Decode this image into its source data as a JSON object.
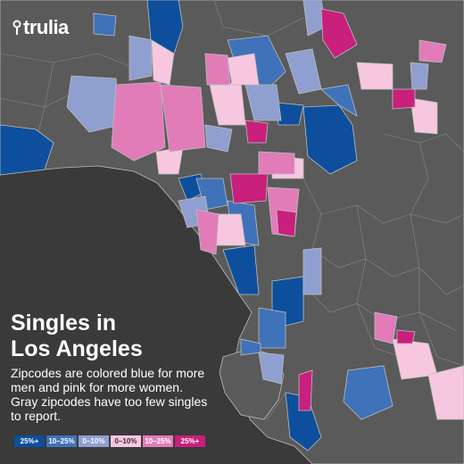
{
  "brand": {
    "name": "trulia"
  },
  "title_lines": [
    "Singles in",
    "Los Angeles"
  ],
  "description_lines": [
    "Zipcodes are colored blue for more",
    "men and pink for more women.",
    "Gray zipcodes have too few singles",
    "to report."
  ],
  "legend": [
    {
      "label": "25%+",
      "color": "#0d4f9c",
      "text_color": "#ffffff",
      "group": "men"
    },
    {
      "label": "10–25%",
      "color": "#3f72b8",
      "text_color": "#ffffff",
      "group": "men"
    },
    {
      "label": "0–10%",
      "color": "#8f9fd0",
      "text_color": "#ffffff",
      "group": "men"
    },
    {
      "label": "0–10%",
      "color": "#f7c7e0",
      "text_color": "#333333",
      "group": "women"
    },
    {
      "label": "10–25%",
      "color": "#e17cb9",
      "text_color": "#ffffff",
      "group": "women"
    },
    {
      "label": "25%+",
      "color": "#c91f7d",
      "text_color": "#ffffff",
      "group": "women"
    }
  ],
  "colors": {
    "ocean": "#3a3a3a",
    "land_gray": "#5a5a5a",
    "border": "#bdbdbd"
  }
}
